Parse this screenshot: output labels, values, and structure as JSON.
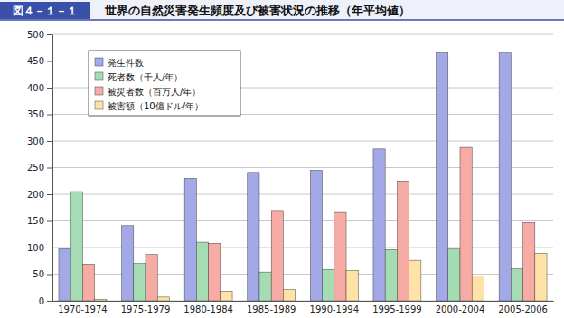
{
  "chart_data": {
    "type": "bar",
    "title": "世界の自然災害発生頻度及び被害状況の推移（年平均値）",
    "annotations": [
      {
        "text": "図４－１－１"
      }
    ],
    "categories": [
      "1970-1974",
      "1975-1979",
      "1980-1984",
      "1985-1989",
      "1990-1994",
      "1995-1999",
      "2000-2004",
      "2005-2006"
    ],
    "series": [
      {
        "name": "発生件数",
        "color": "#a3a8e6",
        "values": [
          98,
          141,
          230,
          241,
          245,
          285,
          465,
          465
        ]
      },
      {
        "name": "死者数（千人/年）",
        "color": "#a6dcb4",
        "values": [
          205,
          70,
          110,
          54,
          59,
          96,
          97,
          60
        ]
      },
      {
        "name": "被災者数（百万人/年）",
        "color": "#f6aca4",
        "values": [
          69,
          87,
          108,
          168,
          166,
          225,
          288,
          147
        ]
      },
      {
        "name": "被害額（10億ドル/年）",
        "color": "#ffe3a6",
        "values": [
          3,
          7,
          18,
          21,
          57,
          76,
          47,
          89
        ]
      }
    ],
    "ylim": [
      0,
      500
    ],
    "yticks": [
      0,
      50,
      100,
      150,
      200,
      250,
      300,
      350,
      400,
      450,
      500
    ],
    "grid": true,
    "legend": "top-left"
  }
}
